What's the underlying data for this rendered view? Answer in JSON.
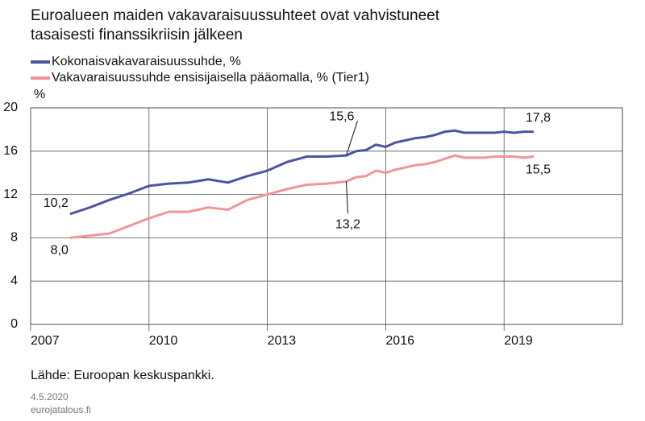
{
  "chart_data": {
    "type": "line",
    "title": "Euroalueen maiden vakavaraisuussuhteet ovat vahvistuneet tasaisesti finanssikriisin jälkeen",
    "y_label": "%",
    "source": "Lähde: Euroopan keskuspankki.",
    "date": "4.5.2020",
    "site": "eurojatalous.fi",
    "x": [
      2008,
      2008.5,
      2009,
      2009.5,
      2010,
      2010.5,
      2011,
      2011.5,
      2012,
      2012.5,
      2013,
      2013.5,
      2014,
      2014.5,
      2015,
      2015.25,
      2015.5,
      2015.75,
      2016,
      2016.25,
      2016.5,
      2016.75,
      2017,
      2017.25,
      2017.5,
      2017.75,
      2018,
      2018.25,
      2018.5,
      2018.75,
      2019,
      2019.25,
      2019.5,
      2019.75
    ],
    "series": [
      {
        "name": "Kokonaisvakavaraisuussuhde, %",
        "color": "#4a55a2",
        "values": [
          10.2,
          10.8,
          11.5,
          12.1,
          12.8,
          13.0,
          13.1,
          13.4,
          13.1,
          13.7,
          14.2,
          15.0,
          15.5,
          15.5,
          15.6,
          16.0,
          16.1,
          16.6,
          16.4,
          16.8,
          17.0,
          17.2,
          17.3,
          17.5,
          17.8,
          17.9,
          17.7,
          17.7,
          17.7,
          17.7,
          17.8,
          17.7,
          17.8,
          17.8
        ],
        "value_labels": [
          "10,2",
          null,
          null,
          null,
          null,
          null,
          null,
          null,
          null,
          null,
          null,
          null,
          null,
          null,
          "15,6",
          null,
          null,
          null,
          null,
          null,
          null,
          null,
          null,
          null,
          null,
          null,
          null,
          null,
          null,
          null,
          null,
          null,
          null,
          "17,8"
        ]
      },
      {
        "name": "Vakavaraisuussuhde ensisijaisella pääomalla, % (Tier1)",
        "color": "#f0959a",
        "values": [
          8.0,
          8.2,
          8.4,
          9.1,
          9.8,
          10.4,
          10.4,
          10.8,
          10.6,
          11.5,
          12.0,
          12.5,
          12.9,
          13.0,
          13.2,
          13.6,
          13.7,
          14.2,
          14.0,
          14.3,
          14.5,
          14.7,
          14.8,
          15.0,
          15.3,
          15.6,
          15.4,
          15.4,
          15.4,
          15.5,
          15.5,
          15.5,
          15.4,
          15.5
        ],
        "value_labels": [
          "8,0",
          null,
          null,
          null,
          null,
          null,
          null,
          null,
          null,
          null,
          null,
          null,
          null,
          null,
          "13,2",
          null,
          null,
          null,
          null,
          null,
          null,
          null,
          null,
          null,
          null,
          null,
          null,
          null,
          null,
          null,
          null,
          null,
          null,
          "15,5"
        ]
      }
    ],
    "xlim": [
      2007,
      2022
    ],
    "xticks": [
      2007,
      2010,
      2013,
      2016,
      2019
    ],
    "ylim": [
      0,
      20
    ],
    "yticks": [
      0,
      4,
      8,
      12,
      16,
      20
    ],
    "grid": true
  }
}
